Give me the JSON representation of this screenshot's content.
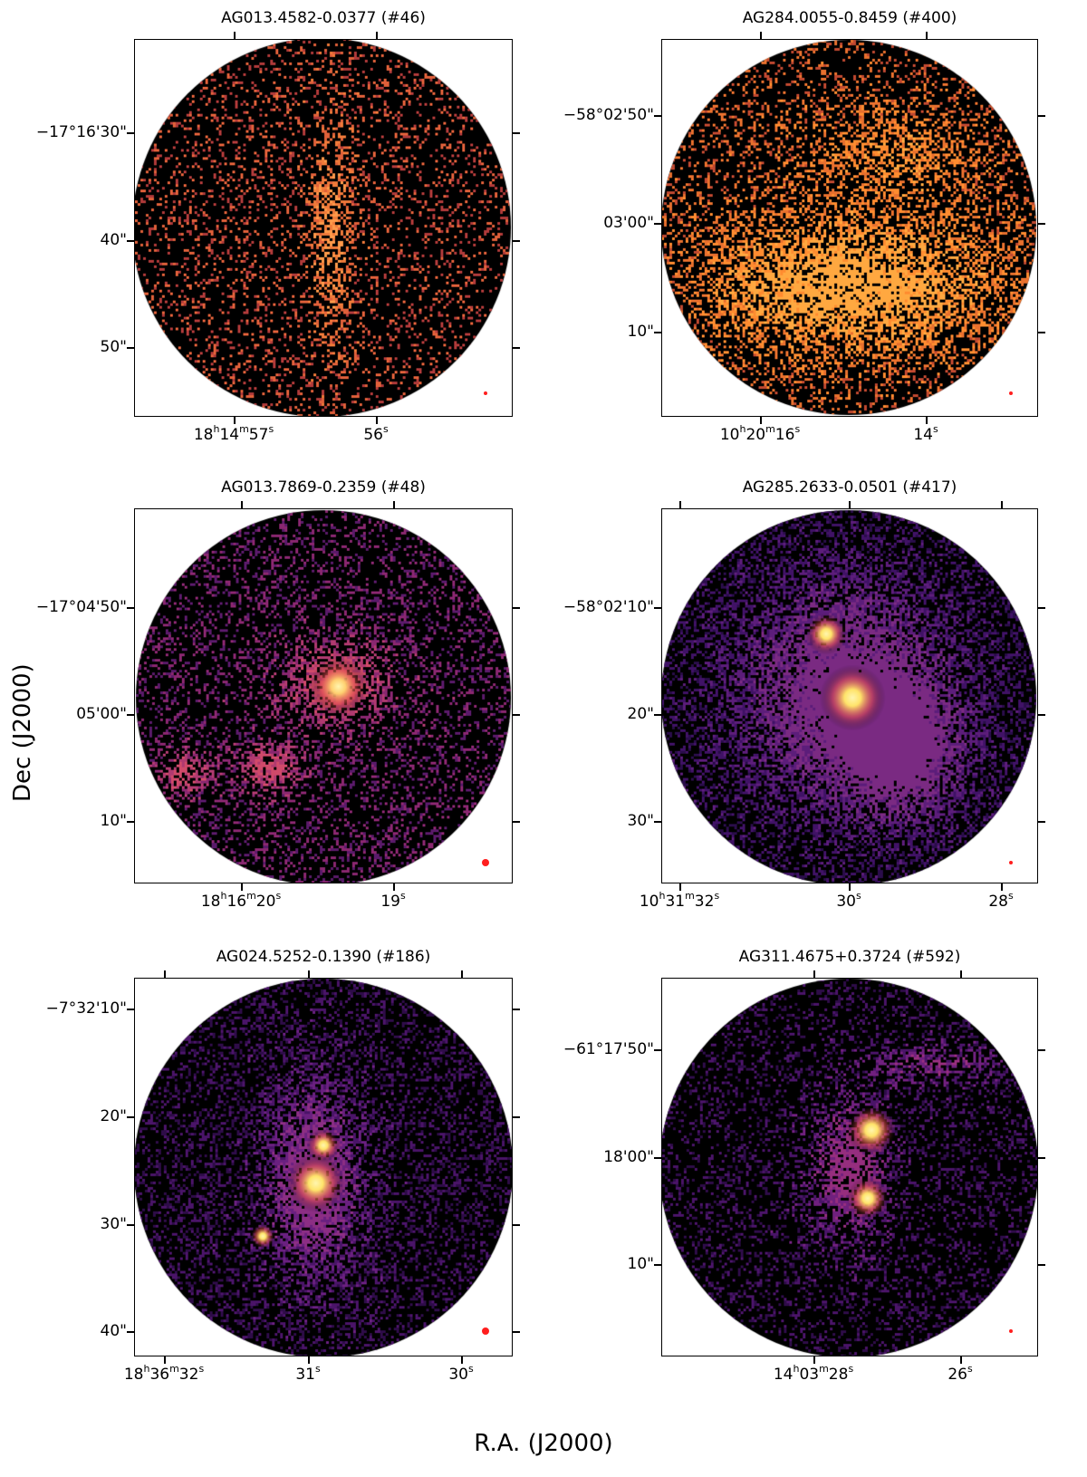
{
  "figure": {
    "ylabel": "Dec (J2000)",
    "xlabel": "R.A. (J2000)"
  },
  "panels": [
    {
      "title": "AG013.4582-0.0377 (#46)",
      "dec_ticks": [
        "−17°16'30\"",
        "40\"",
        "50\""
      ],
      "ra_ticks": [
        [
          "18",
          "14",
          "57"
        ],
        [
          "",
          "",
          "56"
        ]
      ],
      "colormap": "orange-speckle",
      "beam": "small"
    },
    {
      "title": "AG284.0055-0.8459 (#400)",
      "dec_ticks": [
        "−58°02'50\"",
        "03'00\"",
        "10\""
      ],
      "ra_ticks": [
        [
          "10",
          "20",
          "16"
        ],
        [
          "",
          "",
          "14"
        ]
      ],
      "colormap": "orange-diffuse",
      "beam": "small"
    },
    {
      "title": "AG013.7869-0.2359 (#48)",
      "dec_ticks": [
        "−17°04'50\"",
        "05'00\"",
        "10\""
      ],
      "ra_ticks": [
        [
          "18",
          "16",
          "20"
        ],
        [
          "",
          "",
          "19"
        ]
      ],
      "colormap": "magenta-clumps",
      "beam": "large"
    },
    {
      "title": "AG285.2633-0.0501 (#417)",
      "dec_ticks": [
        "−58°02'10\"",
        "20\"",
        "30\""
      ],
      "ra_ticks": [
        [
          "10",
          "31",
          "32"
        ],
        [
          "",
          "",
          "30"
        ],
        [
          "",
          "",
          "28"
        ]
      ],
      "colormap": "purple-nebula",
      "beam": "small"
    },
    {
      "title": "AG024.5252-0.1390 (#186)",
      "dec_ticks": [
        "−7°32'10\"",
        "20\"",
        "30\"",
        "40\""
      ],
      "ra_ticks": [
        [
          "18",
          "36",
          "32"
        ],
        [
          "",
          "",
          "31"
        ],
        [
          "",
          "",
          "30"
        ]
      ],
      "colormap": "purple-filament",
      "beam": "large"
    },
    {
      "title": "AG311.4675+0.3724 (#592)",
      "dec_ticks": [
        "−61°17'50\"",
        "18'00\"",
        "10\""
      ],
      "ra_ticks": [
        [
          "14",
          "03",
          "28"
        ],
        [
          "",
          "",
          "26"
        ]
      ],
      "colormap": "purple-sparse",
      "beam": "small"
    }
  ],
  "colors": {
    "background": "#000000",
    "emission_orange": "#ff8a3d",
    "emission_magenta": "#c0336e",
    "emission_purple": "#5a1f7a",
    "peak_yellow": "#ffe46a",
    "beam_red": "#ff1e1e"
  }
}
